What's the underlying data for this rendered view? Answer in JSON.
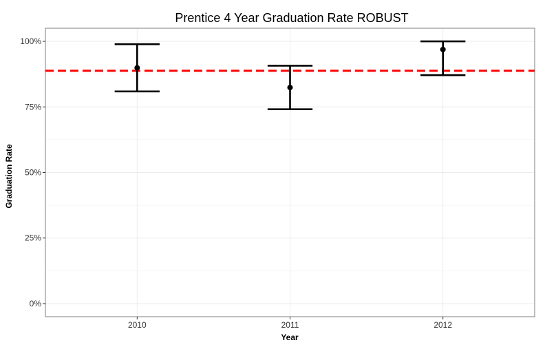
{
  "chart_data": {
    "type": "scatter",
    "title": "Prentice 4 Year Graduation Rate ROBUST",
    "xlabel": "Year",
    "ylabel": "Graduation Rate",
    "categories": [
      "2010",
      "2011",
      "2012"
    ],
    "points": [
      {
        "x": "2010",
        "y": 0.899,
        "ymin": 0.809,
        "ymax": 0.989
      },
      {
        "x": "2011",
        "y": 0.824,
        "ymin": 0.741,
        "ymax": 0.907
      },
      {
        "x": "2012",
        "y": 0.969,
        "ymin": 0.871,
        "ymax": 1.0
      }
    ],
    "reference_line": {
      "y": 0.888,
      "color": "#ff0000",
      "style": "dashed"
    },
    "y_ticks": [
      {
        "value": 0.0,
        "label": "0%"
      },
      {
        "value": 0.25,
        "label": "25%"
      },
      {
        "value": 0.5,
        "label": "50%"
      },
      {
        "value": 0.75,
        "label": "75%"
      },
      {
        "value": 1.0,
        "label": "100%"
      }
    ],
    "ylim": [
      -0.05,
      1.05
    ],
    "grid": true,
    "colors": {
      "points": "#000000",
      "grid": "#ebebeb",
      "panel_border": "#7f7f7f"
    }
  }
}
